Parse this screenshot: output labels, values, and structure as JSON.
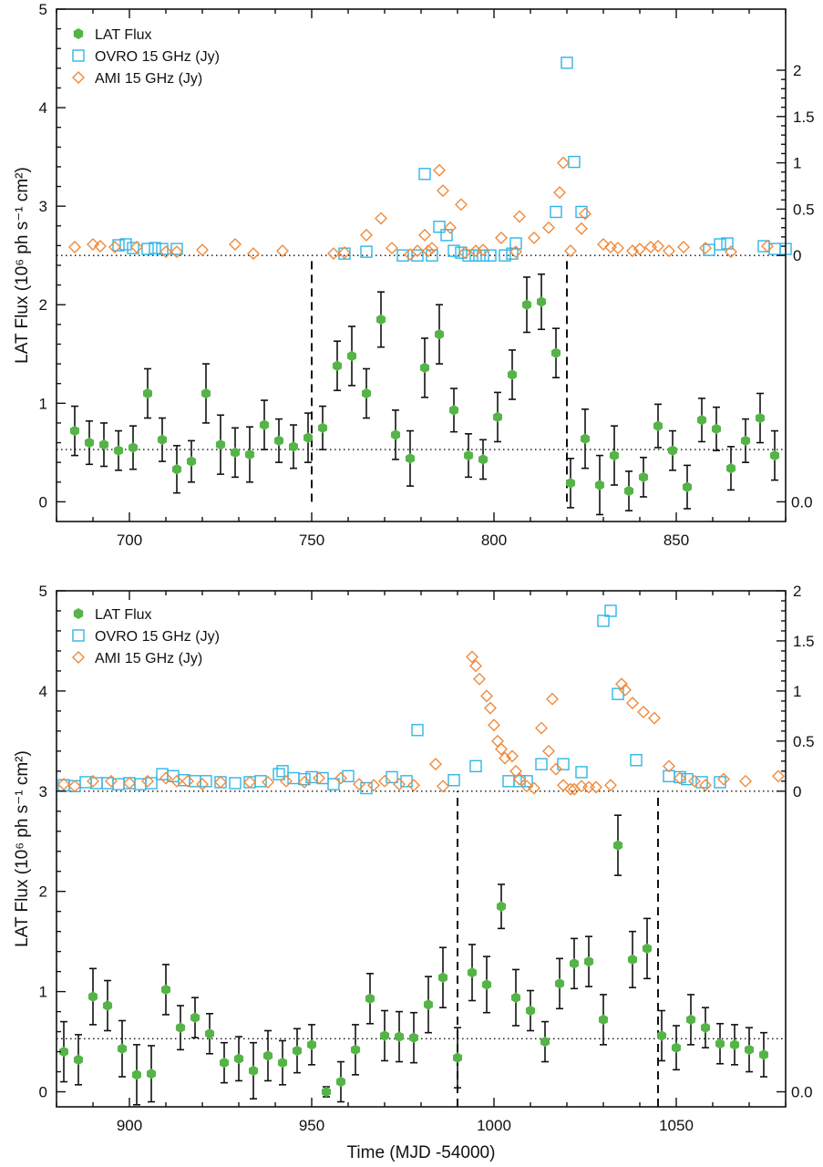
{
  "colors": {
    "lat": "#55b447",
    "ovro": "#2fb6e6",
    "ami": "#ef8a3c",
    "axis": "#111111"
  },
  "chart_data": [
    {
      "type": "scatter",
      "panel": "top",
      "xlabel": "",
      "ylabel_left": "LAT Flux (10⁶ ph s⁻¹ cm²)",
      "xlim": [
        680,
        880
      ],
      "ylim_left": [
        -0.2,
        5.0
      ],
      "x_ticks": [
        700,
        750,
        800,
        850
      ],
      "y_ticks_left": [
        0,
        1,
        2,
        3,
        4,
        5
      ],
      "radio_zero_on_left": 2.5,
      "radio_scale_left_per_jy": 0.94,
      "y_ticks_right": [
        {
          "value": 0,
          "label": "0"
        },
        {
          "value": 0.5,
          "label": "0.5"
        },
        {
          "value": 1,
          "label": "1"
        },
        {
          "value": 1.5,
          "label": "1.5"
        },
        {
          "value": 2,
          "label": "2"
        }
      ],
      "right_bottom_tick": {
        "left_value": 0,
        "label": "0.0"
      },
      "hlines_left": [
        2.5,
        0.53
      ],
      "vlines": [
        {
          "x": 750,
          "y0": 0.0,
          "y1": 2.5
        },
        {
          "x": 820,
          "y0": 0.0,
          "y1": 2.5
        }
      ],
      "legend": [
        "LAT Flux",
        "OVRO 15 GHz (Jy)",
        "AMI 15 GHz (Jy)"
      ],
      "series": [
        {
          "name": "LAT Flux",
          "marker": "hexagon",
          "axis": "left",
          "x": [
            685,
            689,
            693,
            697,
            701,
            705,
            709,
            713,
            717,
            721,
            725,
            729,
            733,
            737,
            741,
            745,
            749,
            753,
            757,
            761,
            765,
            769,
            773,
            777,
            781,
            785,
            789,
            793,
            797,
            801,
            805,
            809,
            813,
            817,
            821,
            825,
            829,
            833,
            837,
            841,
            845,
            849,
            853,
            857,
            861,
            865,
            869,
            873,
            877
          ],
          "y": [
            0.72,
            0.6,
            0.58,
            0.52,
            0.55,
            1.1,
            0.63,
            0.33,
            0.41,
            1.1,
            0.58,
            0.5,
            0.48,
            0.78,
            0.62,
            0.56,
            0.65,
            0.75,
            1.38,
            1.48,
            1.1,
            1.85,
            0.68,
            0.44,
            1.36,
            1.7,
            0.93,
            0.47,
            0.43,
            0.86,
            1.29,
            2.0,
            2.03,
            1.51,
            0.19,
            0.64,
            0.17,
            0.47,
            0.11,
            0.25,
            0.77,
            0.52,
            0.15,
            0.83,
            0.74,
            0.34,
            0.62,
            0.85,
            0.47
          ],
          "err": [
            0.25,
            0.22,
            0.22,
            0.2,
            0.22,
            0.25,
            0.22,
            0.24,
            0.21,
            0.3,
            0.3,
            0.25,
            0.28,
            0.25,
            0.22,
            0.22,
            0.25,
            0.22,
            0.25,
            0.3,
            0.25,
            0.28,
            0.25,
            0.28,
            0.3,
            0.3,
            0.22,
            0.22,
            0.2,
            0.25,
            0.25,
            0.28,
            0.28,
            0.25,
            0.25,
            0.3,
            0.3,
            0.3,
            0.2,
            0.2,
            0.22,
            0.2,
            0.22,
            0.22,
            0.22,
            0.22,
            0.22,
            0.25,
            0.25
          ]
        },
        {
          "name": "OVRO 15 GHz (Jy)",
          "marker": "square",
          "axis": "right",
          "x": [
            697,
            699,
            701,
            705,
            707,
            709,
            713,
            759,
            765,
            775,
            779,
            781,
            783,
            785,
            787,
            789,
            791,
            793,
            795,
            797,
            799,
            803,
            805,
            806,
            817,
            820,
            822,
            824,
            859,
            862,
            864,
            874,
            877,
            880
          ],
          "y": [
            0.11,
            0.12,
            0.08,
            0.07,
            0.08,
            0.07,
            0.07,
            0.02,
            0.04,
            0.0,
            0.0,
            0.88,
            0.0,
            0.31,
            0.22,
            0.05,
            0.03,
            0.0,
            0.0,
            0.0,
            0.0,
            0.0,
            0.02,
            0.13,
            0.47,
            2.08,
            1.01,
            0.47,
            0.06,
            0.12,
            0.13,
            0.1,
            0.07,
            0.07
          ]
        },
        {
          "name": "AMI 15 GHz (Jy)",
          "marker": "diamond",
          "axis": "right",
          "x": [
            685,
            690,
            692,
            696,
            702,
            710,
            713,
            720,
            729,
            734,
            742,
            756,
            759,
            765,
            769,
            772,
            777,
            779,
            781,
            782,
            783,
            785,
            786,
            788,
            791,
            792,
            795,
            797,
            802,
            806,
            807,
            811,
            815,
            818,
            819,
            821,
            824,
            825,
            830,
            832,
            834,
            838,
            840,
            843,
            845,
            848,
            852,
            858,
            865,
            875
          ],
          "y": [
            0.09,
            0.12,
            0.1,
            0.09,
            0.09,
            0.04,
            0.04,
            0.06,
            0.12,
            0.02,
            0.05,
            0.02,
            0.03,
            0.22,
            0.4,
            0.08,
            0.01,
            0.05,
            0.22,
            0.05,
            0.08,
            0.92,
            0.7,
            0.3,
            0.55,
            0.03,
            0.05,
            0.06,
            0.19,
            0.04,
            0.42,
            0.19,
            0.3,
            0.68,
            1.0,
            0.05,
            0.29,
            0.45,
            0.12,
            0.09,
            0.08,
            0.05,
            0.07,
            0.09,
            0.1,
            0.05,
            0.09,
            0.08,
            0.04,
            0.1
          ]
        }
      ]
    },
    {
      "type": "scatter",
      "panel": "bottom",
      "xlabel": "Time (MJD -54000)",
      "ylabel_left": "LAT Flux (10⁶ ph s⁻¹ cm²)",
      "xlim": [
        880,
        1080
      ],
      "ylim_left": [
        -0.15,
        5.0
      ],
      "x_ticks": [
        900,
        950,
        1000,
        1050
      ],
      "y_ticks_left": [
        0,
        1,
        2,
        3,
        4,
        5
      ],
      "radio_zero_on_left": 3.0,
      "radio_scale_left_per_jy": 1.0,
      "y_ticks_right": [
        {
          "value": 0,
          "label": "0"
        },
        {
          "value": 0.5,
          "label": "0.5"
        },
        {
          "value": 1,
          "label": "1"
        },
        {
          "value": 1.5,
          "label": "1.5"
        },
        {
          "value": 2,
          "label": "2"
        }
      ],
      "right_bottom_tick": {
        "left_value": 0,
        "label": "0.0"
      },
      "hlines_left": [
        3.0,
        0.53
      ],
      "vlines": [
        {
          "x": 990,
          "y0": -0.15,
          "y1": 3.0
        },
        {
          "x": 1045,
          "y0": -0.15,
          "y1": 3.0
        }
      ],
      "legend": [
        "LAT Flux",
        "OVRO 15 GHz (Jy)",
        "AMI 15 GHz (Jy)"
      ],
      "series": [
        {
          "name": "LAT Flux",
          "marker": "hexagon",
          "axis": "left",
          "x": [
            882,
            886,
            890,
            894,
            898,
            902,
            906,
            910,
            914,
            918,
            922,
            926,
            930,
            934,
            938,
            942,
            946,
            950,
            954,
            958,
            962,
            966,
            970,
            974,
            978,
            982,
            986,
            990,
            994,
            998,
            1002,
            1006,
            1010,
            1014,
            1018,
            1022,
            1026,
            1030,
            1034,
            1038,
            1042,
            1046,
            1050,
            1054,
            1058,
            1062,
            1066,
            1070,
            1074
          ],
          "y": [
            0.4,
            0.32,
            0.95,
            0.86,
            0.43,
            0.17,
            0.18,
            1.02,
            0.64,
            0.74,
            0.58,
            0.29,
            0.33,
            0.21,
            0.36,
            0.29,
            0.41,
            0.47,
            0.0,
            0.1,
            0.42,
            0.93,
            0.56,
            0.55,
            0.54,
            0.87,
            1.14,
            0.34,
            1.19,
            1.07,
            1.85,
            0.94,
            0.81,
            0.5,
            1.08,
            1.28,
            1.3,
            0.72,
            2.46,
            1.32,
            1.43,
            0.56,
            0.44,
            0.72,
            0.64,
            0.48,
            0.47,
            0.42,
            0.37
          ],
          "err": [
            0.3,
            0.25,
            0.28,
            0.25,
            0.28,
            0.3,
            0.28,
            0.25,
            0.22,
            0.2,
            0.2,
            0.2,
            0.22,
            0.28,
            0.25,
            0.22,
            0.22,
            0.2,
            0.05,
            0.2,
            0.25,
            0.25,
            0.25,
            0.25,
            0.25,
            0.28,
            0.3,
            0.3,
            0.28,
            0.28,
            0.22,
            0.28,
            0.2,
            0.2,
            0.25,
            0.25,
            0.25,
            0.25,
            0.3,
            0.28,
            0.3,
            0.25,
            0.22,
            0.25,
            0.2,
            0.2,
            0.2,
            0.22,
            0.22
          ]
        },
        {
          "name": "OVRO 15 GHz (Jy)",
          "marker": "square",
          "axis": "right",
          "x": [
            882,
            885,
            888,
            891,
            894,
            897,
            900,
            903,
            906,
            909,
            912,
            915,
            918,
            921,
            925,
            929,
            933,
            936,
            941,
            942,
            945,
            948,
            950,
            953,
            956,
            960,
            965,
            972,
            976,
            979,
            989,
            995,
            1004,
            1007,
            1009,
            1013,
            1019,
            1024,
            1030,
            1032,
            1034,
            1039,
            1048,
            1051,
            1053,
            1057,
            1062
          ],
          "y": [
            0.06,
            0.05,
            0.09,
            0.08,
            0.08,
            0.07,
            0.08,
            0.07,
            0.08,
            0.17,
            0.15,
            0.11,
            0.1,
            0.1,
            0.09,
            0.08,
            0.09,
            0.1,
            0.17,
            0.2,
            0.13,
            0.12,
            0.14,
            0.13,
            0.07,
            0.15,
            0.03,
            0.14,
            0.1,
            0.61,
            0.11,
            0.25,
            0.1,
            0.1,
            0.1,
            0.27,
            0.27,
            0.19,
            1.7,
            1.8,
            0.97,
            0.31,
            0.15,
            0.14,
            0.12,
            0.09,
            0.09
          ]
        },
        {
          "name": "AMI 15 GHz (Jy)",
          "marker": "diamond",
          "axis": "right",
          "x": [
            882,
            885,
            890,
            895,
            900,
            905,
            910,
            913,
            916,
            920,
            925,
            933,
            938,
            943,
            948,
            952,
            958,
            963,
            967,
            970,
            974,
            978,
            984,
            986,
            994,
            995,
            996,
            998,
            999,
            1000,
            1001,
            1002,
            1003,
            1005,
            1006,
            1007,
            1009,
            1011,
            1013,
            1015,
            1016,
            1017,
            1019,
            1021,
            1022,
            1024,
            1026,
            1028,
            1032,
            1035,
            1036,
            1038,
            1041,
            1044,
            1048,
            1051,
            1055,
            1058,
            1063,
            1069,
            1078
          ],
          "y": [
            0.07,
            0.05,
            0.1,
            0.1,
            0.08,
            0.1,
            0.13,
            0.1,
            0.1,
            0.07,
            0.09,
            0.09,
            0.09,
            0.1,
            0.09,
            0.13,
            0.13,
            0.07,
            0.06,
            0.1,
            0.07,
            0.06,
            0.27,
            0.05,
            1.34,
            1.25,
            1.12,
            0.95,
            0.83,
            0.66,
            0.5,
            0.42,
            0.33,
            0.35,
            0.2,
            0.12,
            0.05,
            0.03,
            0.63,
            0.4,
            0.92,
            0.22,
            0.06,
            0.02,
            0.02,
            0.05,
            0.04,
            0.04,
            0.06,
            1.07,
            1.01,
            0.88,
            0.79,
            0.73,
            0.25,
            0.13,
            0.1,
            0.06,
            0.12,
            0.1,
            0.15
          ]
        }
      ]
    }
  ]
}
